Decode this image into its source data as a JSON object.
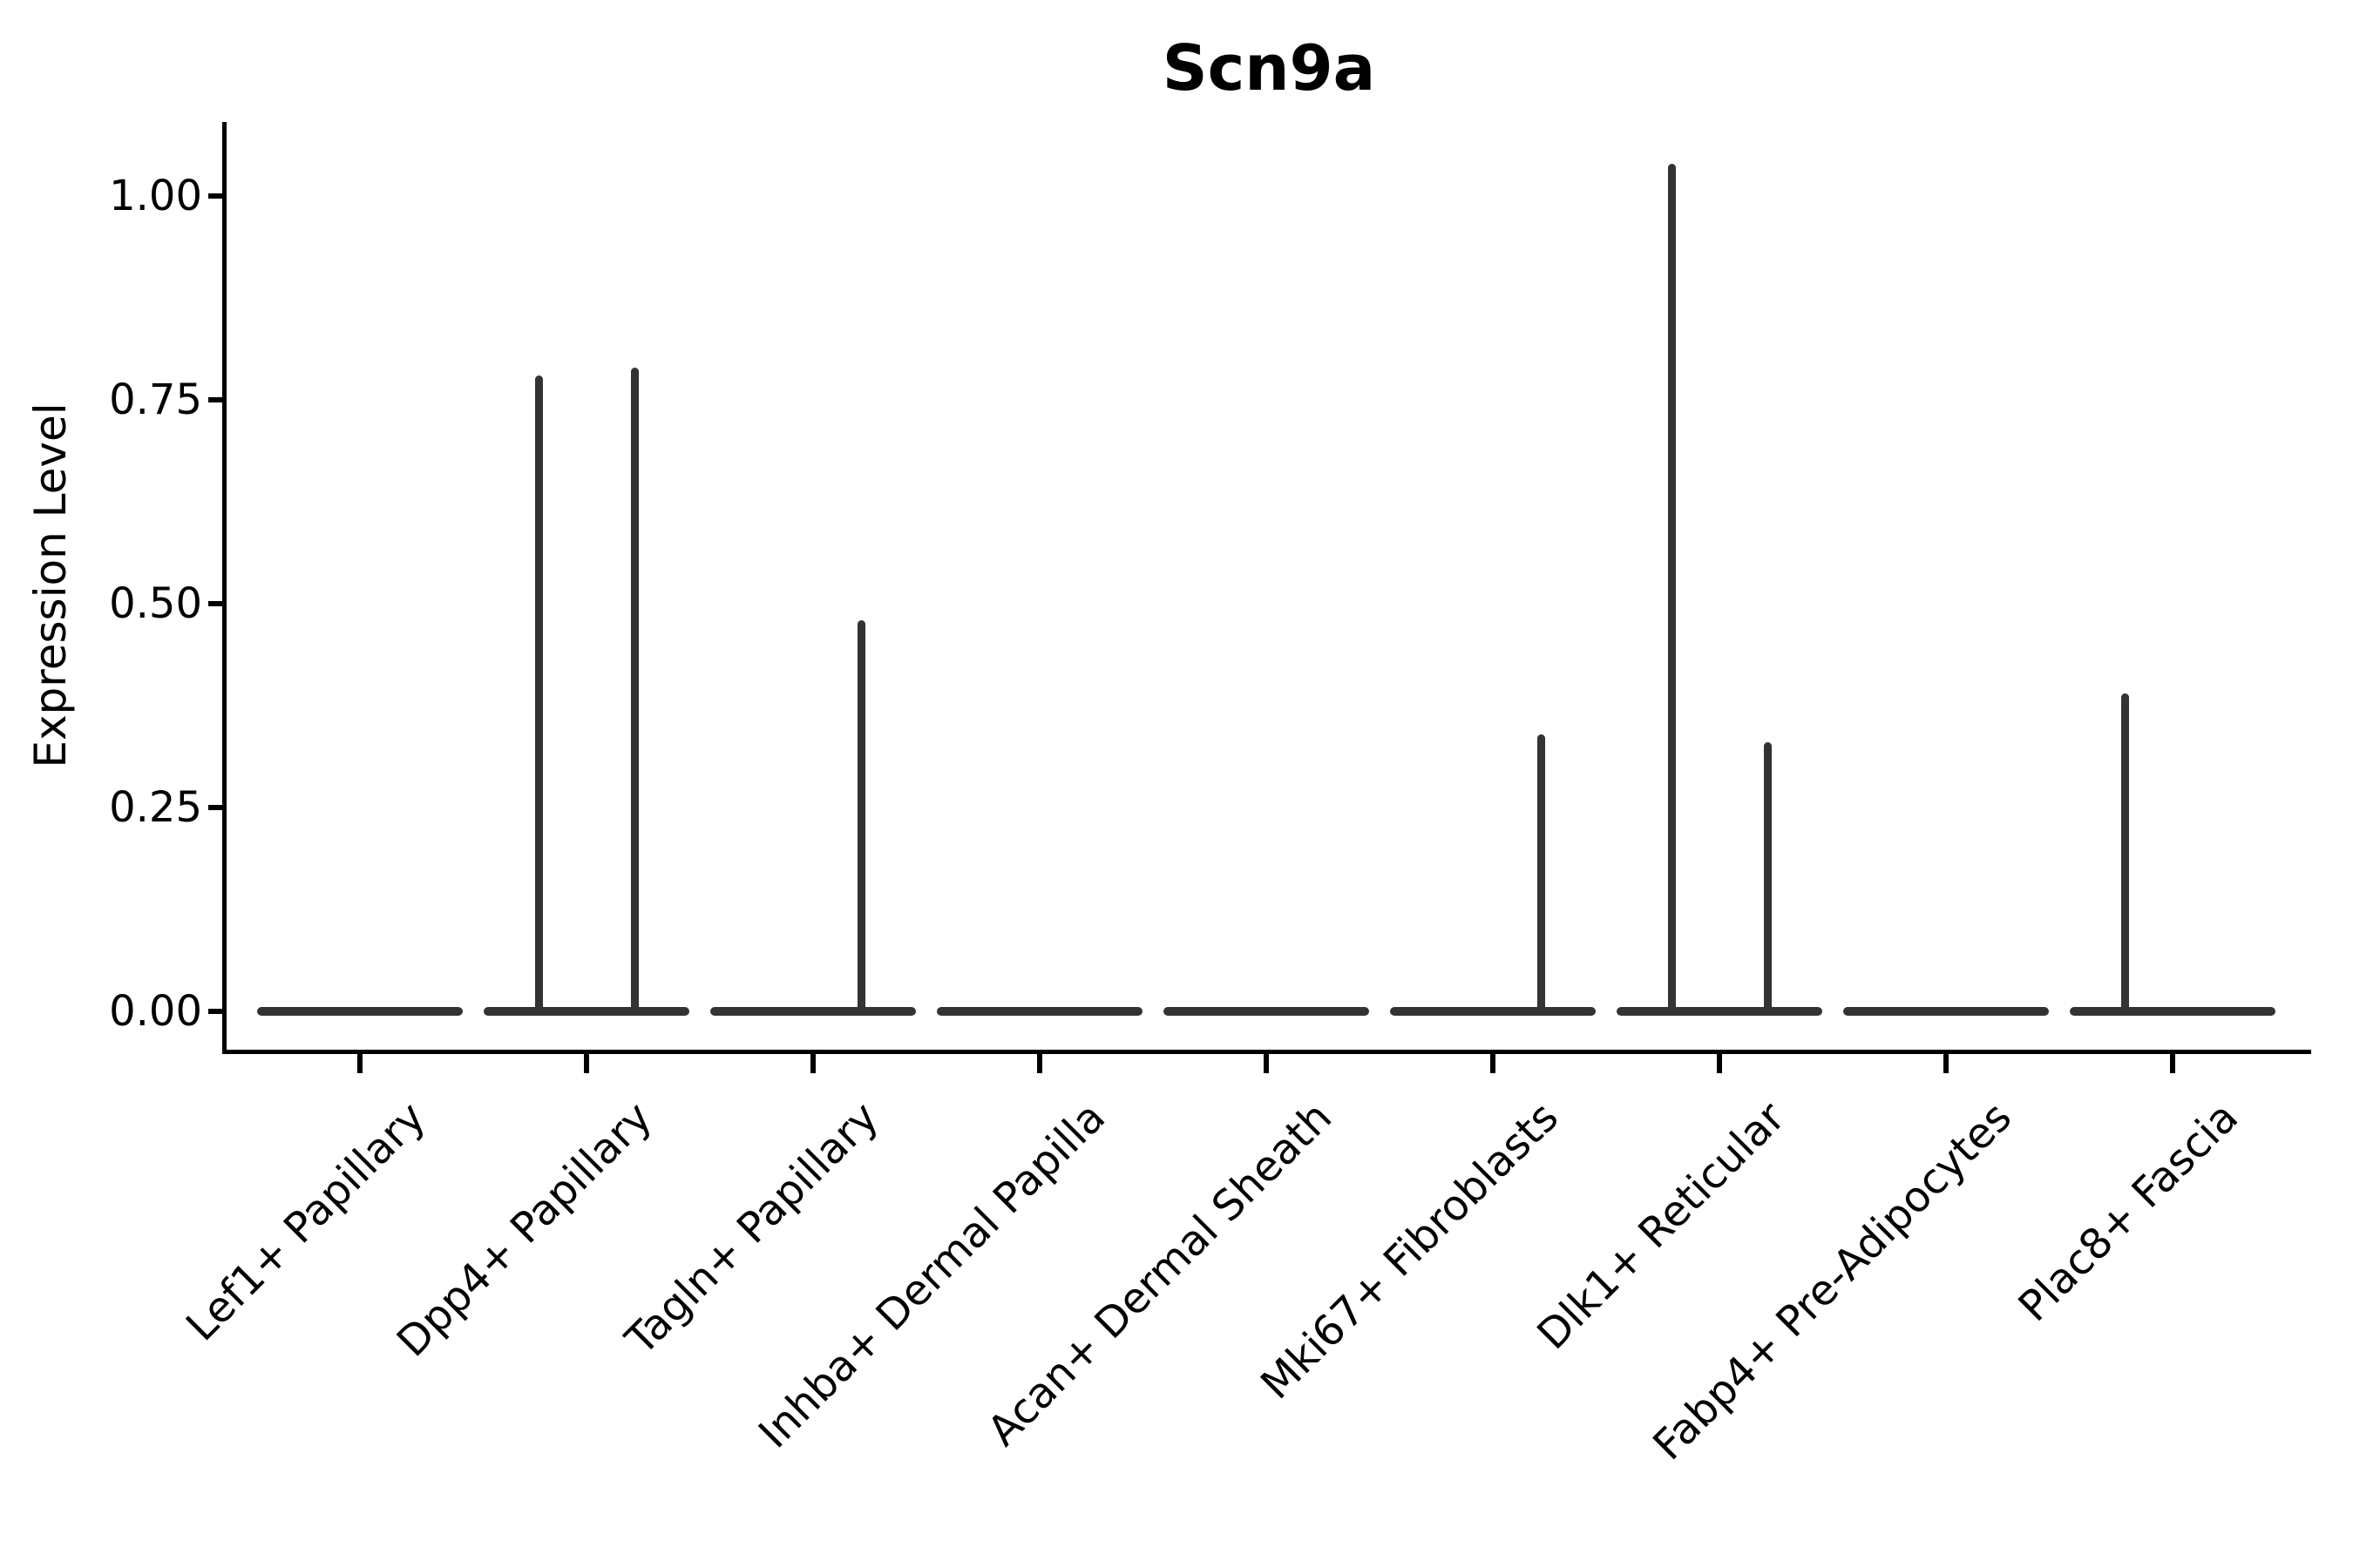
{
  "chart_data": {
    "type": "violin",
    "title": "Scn9a",
    "xlabel": "",
    "ylabel": "Expression Level",
    "background": "#ffffff",
    "violin_color": "#333333",
    "axis_color": "#000000",
    "legend": "none",
    "grid": false,
    "ylim": [
      -0.05,
      1.09
    ],
    "y_axis": {
      "label": "Expression Level",
      "ticks": [
        "0.00",
        "0.25",
        "0.50",
        "0.75",
        "1.00"
      ],
      "tick_values": [
        0,
        0.25,
        0.5,
        0.75,
        1.0
      ]
    },
    "categories": [
      "Lef1+ Papillary",
      "Dpp4+ Papillary",
      "Tagln+ Papillary",
      "Inhba+ Dermal Papilla",
      "Acan+ Dermal Sheath",
      "Mki67+ Fibroblasts",
      "Dlk1+ Reticular",
      "Fabp4+ Pre-Adipocytes",
      "Plac8+ Fascia"
    ],
    "violins": [
      {
        "category": "Lef1+ Papillary",
        "baseline_value": 0,
        "spikes": []
      },
      {
        "category": "Dpp4+ Papillary",
        "baseline_value": 0,
        "spikes": [
          {
            "side": "left",
            "value": 0.78
          },
          {
            "side": "right",
            "value": 0.79
          }
        ]
      },
      {
        "category": "Tagln+ Papillary",
        "baseline_value": 0,
        "spikes": [
          {
            "side": "right",
            "value": 0.48
          }
        ]
      },
      {
        "category": "Inhba+ Dermal Papilla",
        "baseline_value": 0,
        "spikes": []
      },
      {
        "category": "Acan+ Dermal Sheath",
        "baseline_value": 0,
        "spikes": []
      },
      {
        "category": "Mki67+ Fibroblasts",
        "baseline_value": 0,
        "spikes": [
          {
            "side": "right",
            "value": 0.34
          }
        ]
      },
      {
        "category": "Dlk1+ Reticular",
        "baseline_value": 0,
        "spikes": [
          {
            "side": "left",
            "value": 1.04
          },
          {
            "side": "right",
            "value": 0.33
          }
        ]
      },
      {
        "category": "Fabp4+ Pre-Adipocytes",
        "baseline_value": 0,
        "spikes": []
      },
      {
        "category": "Plac8+ Fascia",
        "baseline_value": 0,
        "spikes": [
          {
            "side": "left",
            "value": 0.39
          }
        ]
      }
    ]
  }
}
